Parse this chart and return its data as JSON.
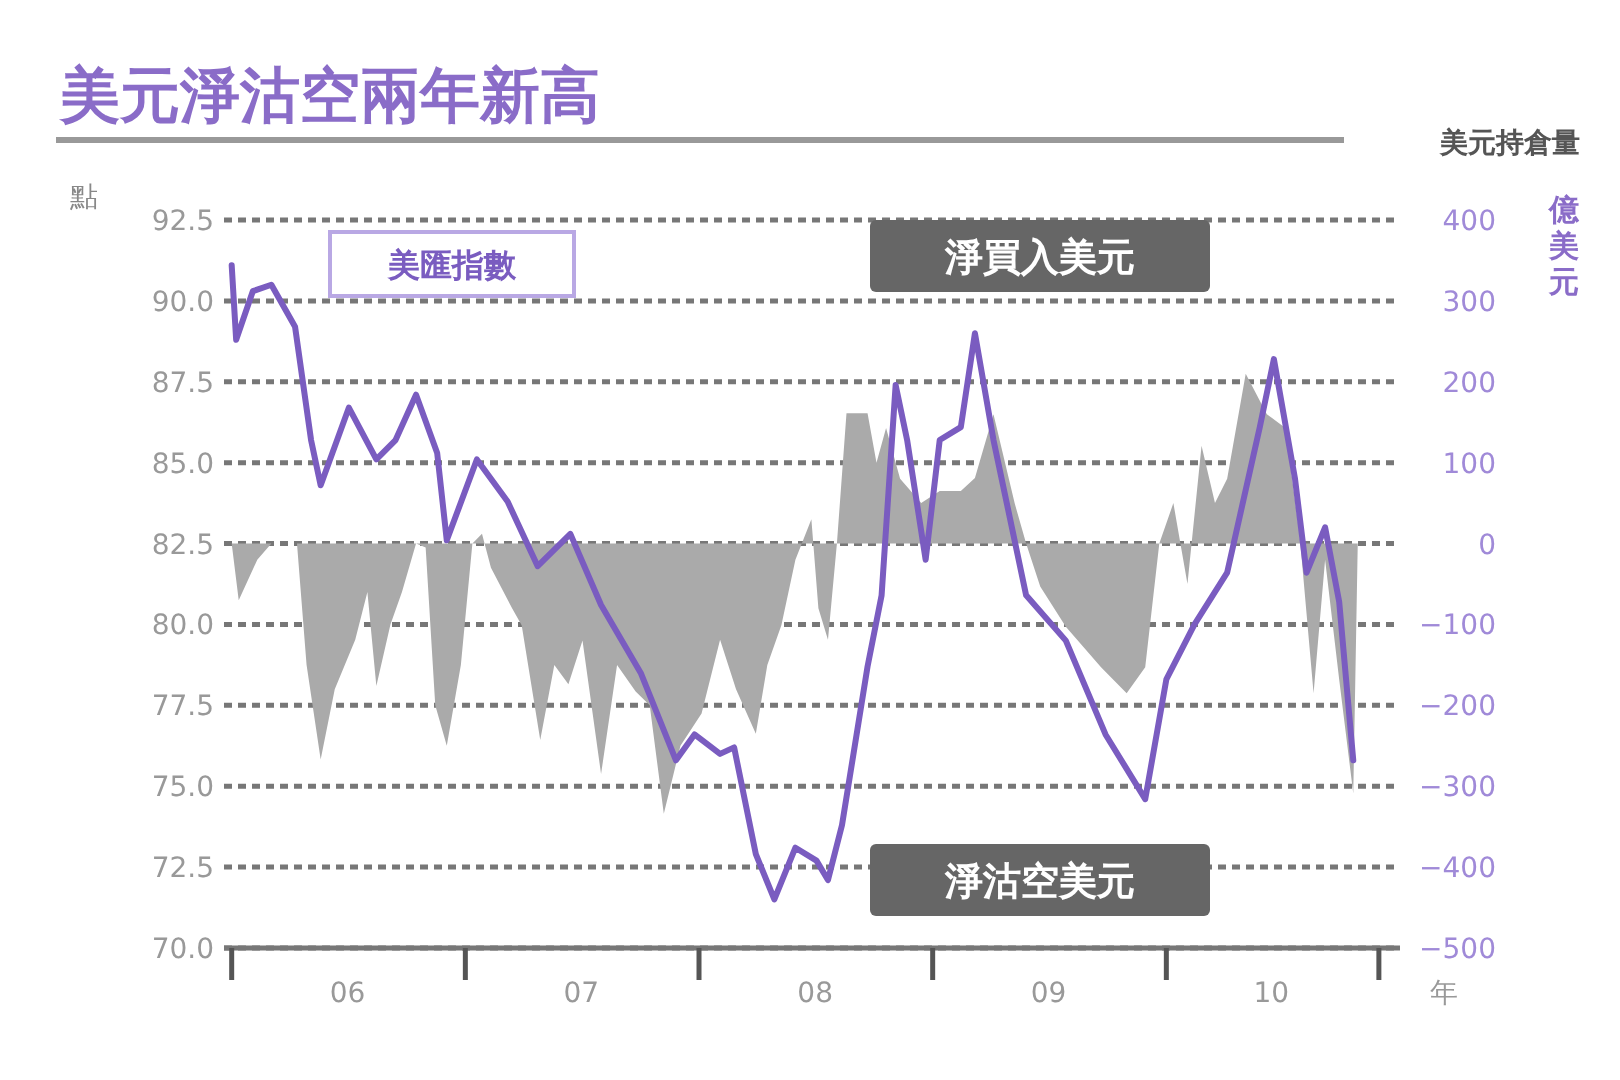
{
  "chart_data": {
    "type": "line",
    "title": "美元淨沽空兩年新高",
    "subtitle": "美元持倉量",
    "ylabel": "點",
    "y2label": "億美元",
    "xlabel": "年",
    "annotations": [
      "淨買入美元",
      "淨沽空美元"
    ],
    "series": [
      {
        "type": "area",
        "axis": "y2",
        "color": "#aaaaaa",
        "x": [
          "2006-01-01",
          "2006-01-12",
          "2006-02-10",
          "2006-03-04",
          "2006-04-13",
          "2006-04-28",
          "2006-05-20",
          "2006-06-11",
          "2006-07-13",
          "2006-08-01",
          "2006-08-15",
          "2006-09-06",
          "2006-09-24",
          "2006-10-16",
          "2006-10-31",
          "2006-11-15",
          "2006-12-03",
          "2006-12-25",
          "2007-01-12",
          "2007-01-27",
          "2007-02-10",
          "2007-03-15",
          "2007-03-30",
          "2007-04-28",
          "2007-05-20",
          "2007-06-11",
          "2007-07-03",
          "2007-08-01",
          "2007-08-26",
          "2007-09-24",
          "2007-10-16",
          "2007-11-07",
          "2007-12-03",
          "2008-01-05",
          "2008-02-03",
          "2008-02-28",
          "2008-03-30",
          "2008-04-17",
          "2008-05-09",
          "2008-05-31",
          "2008-06-25",
          "2008-07-06",
          "2008-07-21",
          "2008-08-04",
          "2008-08-19",
          "2008-09-21",
          "2008-10-05",
          "2008-10-20",
          "2008-11-11",
          "2008-12-14",
          "2009-01-12",
          "2009-02-14",
          "2009-03-08",
          "2009-04-06",
          "2009-05-09",
          "2009-05-27",
          "2009-06-18",
          "2009-07-28",
          "2009-09-21",
          "2009-10-31",
          "2009-11-29",
          "2009-12-21",
          "2010-01-12",
          "2010-02-03",
          "2010-02-25",
          "2010-03-18",
          "2010-04-06",
          "2010-05-05",
          "2010-06-07",
          "2010-07-06",
          "2010-07-28",
          "2010-08-19",
          "2010-09-06",
          "2010-09-28",
          "2010-10-20",
          "2010-10-27"
        ],
        "values": [
          0,
          -70,
          -20,
          0,
          0,
          -150,
          -267,
          -180,
          -119,
          -60,
          -176,
          -100,
          -60,
          0,
          -5,
          -200,
          -250,
          -150,
          0,
          12,
          -30,
          -80,
          -101,
          -243,
          -150,
          -174,
          -120,
          -285,
          -150,
          -183,
          -200,
          -334,
          -250,
          -210,
          -119,
          -180,
          -235,
          -150,
          -101,
          -20,
          30,
          -80,
          -119,
          0,
          161,
          161,
          100,
          143,
          80,
          50,
          65,
          65,
          81,
          160,
          50,
          0,
          -53,
          -103,
          -153,
          -185,
          -153,
          0,
          50,
          -50,
          121,
          50,
          80,
          210,
          160,
          143,
          12,
          -185,
          -20,
          -168,
          -309,
          0
        ]
      },
      {
        "name": "美匯指數",
        "color": "#7a5cc0",
        "x": [
          "2006-01-01",
          "2006-01-08",
          "2006-02-03",
          "2006-03-04",
          "2006-04-10",
          "2006-05-05",
          "2006-05-20",
          "2006-07-03",
          "2006-08-15",
          "2006-09-14",
          "2006-10-16",
          "2006-11-18",
          "2006-12-03",
          "2007-01-19",
          "2007-03-08",
          "2007-04-24",
          "2007-06-14",
          "2007-08-01",
          "2007-10-02",
          "2007-11-26",
          "2007-12-25",
          "2008-02-03",
          "2008-02-25",
          "2008-03-30",
          "2008-04-28",
          "2008-05-31",
          "2008-07-03",
          "2008-07-21",
          "2008-08-12",
          "2008-09-21",
          "2008-10-13",
          "2008-11-04",
          "2008-11-22",
          "2008-12-21",
          "2009-01-12",
          "2009-02-14",
          "2009-03-08",
          "2009-04-06",
          "2009-05-27",
          "2009-07-28",
          "2009-09-28",
          "2009-11-29",
          "2010-01-01",
          "2010-02-14",
          "2010-04-06",
          "2010-05-27",
          "2010-06-18",
          "2010-07-21",
          "2010-08-08",
          "2010-09-06",
          "2010-09-28",
          "2010-10-20"
        ],
        "values": [
          91.1,
          88.8,
          90.3,
          90.5,
          89.2,
          85.7,
          84.3,
          86.7,
          85.1,
          85.7,
          87.1,
          85.3,
          82.6,
          85.1,
          83.8,
          81.8,
          82.8,
          80.6,
          78.5,
          75.8,
          76.6,
          76.0,
          76.2,
          72.9,
          71.5,
          73.1,
          72.7,
          72.1,
          73.8,
          78.7,
          80.9,
          87.4,
          85.7,
          82.0,
          85.7,
          86.1,
          89.0,
          85.7,
          80.9,
          79.5,
          76.6,
          74.6,
          78.3,
          80.0,
          81.6,
          86.1,
          88.2,
          84.5,
          81.6,
          83.0,
          80.7,
          75.8
        ]
      }
    ],
    "xlim": [
      "2005-12-20",
      "2011-01-01"
    ],
    "xticks": [
      {
        "value": "2006-01-01",
        "label": null
      },
      {
        "value": "2006-07-01",
        "label": "06"
      },
      {
        "value": "2007-01-01",
        "label": null
      },
      {
        "value": "2007-07-01",
        "label": "07"
      },
      {
        "value": "2008-01-01",
        "label": null
      },
      {
        "value": "2008-07-01",
        "label": "08"
      },
      {
        "value": "2009-01-01",
        "label": null
      },
      {
        "value": "2009-07-01",
        "label": "09"
      },
      {
        "value": "2010-01-01",
        "label": null
      },
      {
        "value": "2010-06-14",
        "label": "10"
      },
      {
        "value": "2010-11-29",
        "label": null
      }
    ],
    "ylim": [
      70,
      92.5
    ],
    "yticks": [
      {
        "value": 70,
        "label": "70.0"
      },
      72.5,
      {
        "value": 75,
        "label": "75.0"
      },
      77.5,
      {
        "value": 80,
        "label": "80.0"
      },
      82.5,
      {
        "value": 85,
        "label": "85.0"
      },
      87.5,
      {
        "value": 90,
        "label": "90.0"
      },
      92.5
    ],
    "y2lim": [
      -500,
      400
    ],
    "y2ticks": [
      {
        "value": -500,
        "label": "−500"
      },
      {
        "value": -400,
        "label": "−400"
      },
      {
        "value": -300,
        "label": "−300"
      },
      {
        "value": -200,
        "label": "−200"
      },
      {
        "value": -100,
        "label": "−100"
      },
      0,
      100,
      200,
      300,
      400
    ],
    "grid": "y",
    "legend": "top left"
  }
}
